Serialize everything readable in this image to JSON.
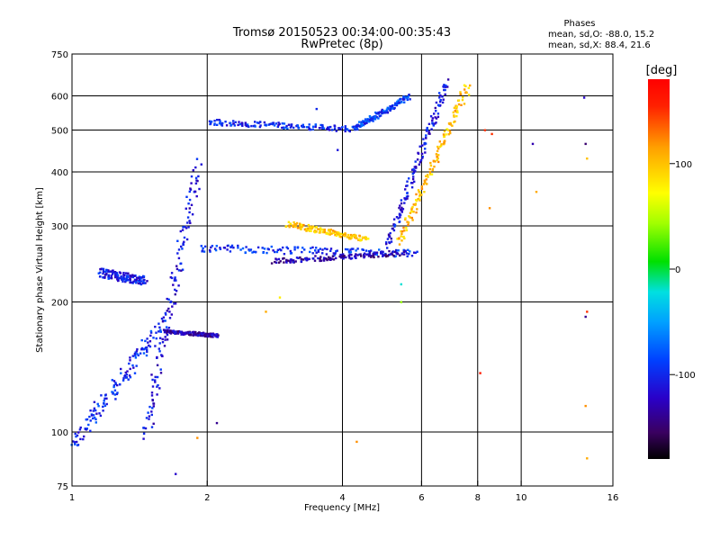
{
  "header": {
    "title_line1": "Tromsø 20150523 00:34:00-00:35:43",
    "title_line2": "RwPretec (8p)"
  },
  "stats": {
    "heading": "Phases",
    "line_o": "mean, sd,O: -88.0, 15.2",
    "line_x": "mean, sd,X:  88.4, 21.6"
  },
  "colorbar": {
    "unit_label": "[deg]",
    "range": [
      -180,
      180
    ],
    "ticks": [
      {
        "value": 100,
        "label": "100"
      },
      {
        "value": 0,
        "label": "0"
      },
      {
        "value": -100,
        "label": "-100"
      }
    ]
  },
  "chart_data": {
    "type": "scatter",
    "title": "Tromsø 20150523 00:34:00-00:35:43",
    "subtitle": "RwPretec (8p)",
    "xlabel": "Frequency [MHz]",
    "ylabel": "Stationary phase Virtual Height [km]",
    "xscale": "log",
    "yscale": "log",
    "xlim": [
      1,
      16
    ],
    "ylim": [
      75,
      750
    ],
    "xticks": [
      {
        "value": 1,
        "label": "1"
      },
      {
        "value": 2,
        "label": "2"
      },
      {
        "value": 4,
        "label": "4"
      },
      {
        "value": 6,
        "label": "6"
      },
      {
        "value": 8,
        "label": "8"
      },
      {
        "value": 10,
        "label": "10"
      },
      {
        "value": 16,
        "label": "16"
      }
    ],
    "yticks": [
      {
        "value": 75,
        "label": "75"
      },
      {
        "value": 100,
        "label": "100"
      },
      {
        "value": 200,
        "label": "200"
      },
      {
        "value": 300,
        "label": "300"
      },
      {
        "value": 400,
        "label": "400"
      },
      {
        "value": 500,
        "label": "500"
      },
      {
        "value": 600,
        "label": "600"
      },
      {
        "value": 750,
        "label": "750"
      }
    ],
    "grid_x": [
      2,
      4,
      6,
      8,
      10
    ],
    "grid_y": [
      100,
      200,
      300,
      400,
      500,
      600
    ],
    "color_by": "phase [deg]",
    "traces": [
      {
        "desc": "low-height scatter",
        "f": [
          1.0,
          1.6
        ],
        "h": [
          95,
          180
        ],
        "phase": -100,
        "spread": 18
      },
      {
        "desc": "Es column",
        "f": [
          1.45,
          1.9
        ],
        "h": [
          100,
          420
        ],
        "phase": -110,
        "spread": 16
      },
      {
        "desc": "Es flat trace",
        "f": [
          1.15,
          1.45
        ],
        "h": [
          235,
          225
        ],
        "phase": -105,
        "spread": 10
      },
      {
        "desc": "F-layer O-trace",
        "f": [
          1.9,
          5.8
        ],
        "h": [
          268,
          260
        ],
        "phase": -95,
        "spread": 8
      },
      {
        "desc": "F-layer lower O",
        "f": [
          2.8,
          5.5
        ],
        "h": [
          250,
          262
        ],
        "phase": -130,
        "spread": 6
      },
      {
        "desc": "F-layer rising O",
        "f": [
          5.0,
          6.8
        ],
        "h": [
          270,
          650
        ],
        "phase": -110,
        "spread": 10
      },
      {
        "desc": "F-layer X-trace",
        "f": [
          5.3,
          7.6
        ],
        "h": [
          275,
          640
        ],
        "phase": 100,
        "spread": 10
      },
      {
        "desc": "yellow arc",
        "f": [
          3.0,
          4.5
        ],
        "h": [
          305,
          280
        ],
        "phase": 100,
        "spread": 6
      },
      {
        "desc": "multi-hop echo",
        "f": [
          2.0,
          4.2
        ],
        "h": [
          525,
          505
        ],
        "phase": -100,
        "spread": 6
      },
      {
        "desc": "multi-hop rise",
        "f": [
          4.2,
          5.6
        ],
        "h": [
          505,
          600
        ],
        "phase": -90,
        "spread": 6
      },
      {
        "desc": "sporadic low",
        "f": [
          1.6,
          2.1
        ],
        "h": [
          172,
          168
        ],
        "phase": -130,
        "spread": 4
      }
    ],
    "points": [
      {
        "f": 8.3,
        "h": 500,
        "phase": 150
      },
      {
        "f": 8.6,
        "h": 490,
        "phase": 150
      },
      {
        "f": 10.6,
        "h": 465,
        "phase": -130
      },
      {
        "f": 13.8,
        "h": 595,
        "phase": -120
      },
      {
        "f": 13.9,
        "h": 465,
        "phase": -150
      },
      {
        "f": 14.0,
        "h": 430,
        "phase": 100
      },
      {
        "f": 10.8,
        "h": 360,
        "phase": 110
      },
      {
        "f": 8.5,
        "h": 330,
        "phase": 120
      },
      {
        "f": 14.0,
        "h": 190,
        "phase": 150
      },
      {
        "f": 13.9,
        "h": 185,
        "phase": -140
      },
      {
        "f": 13.9,
        "h": 115,
        "phase": 120
      },
      {
        "f": 14.0,
        "h": 87,
        "phase": 110
      },
      {
        "f": 8.1,
        "h": 137,
        "phase": 160
      },
      {
        "f": 4.3,
        "h": 95,
        "phase": 120
      },
      {
        "f": 5.4,
        "h": 220,
        "phase": -20
      },
      {
        "f": 5.4,
        "h": 200,
        "phase": 40
      },
      {
        "f": 2.7,
        "h": 190,
        "phase": 110
      },
      {
        "f": 2.9,
        "h": 205,
        "phase": 80
      },
      {
        "f": 1.7,
        "h": 80,
        "phase": -120
      },
      {
        "f": 1.9,
        "h": 97,
        "phase": 120
      },
      {
        "f": 2.1,
        "h": 105,
        "phase": -140
      },
      {
        "f": 3.5,
        "h": 560,
        "phase": -100
      },
      {
        "f": 3.9,
        "h": 450,
        "phase": -110
      }
    ]
  }
}
